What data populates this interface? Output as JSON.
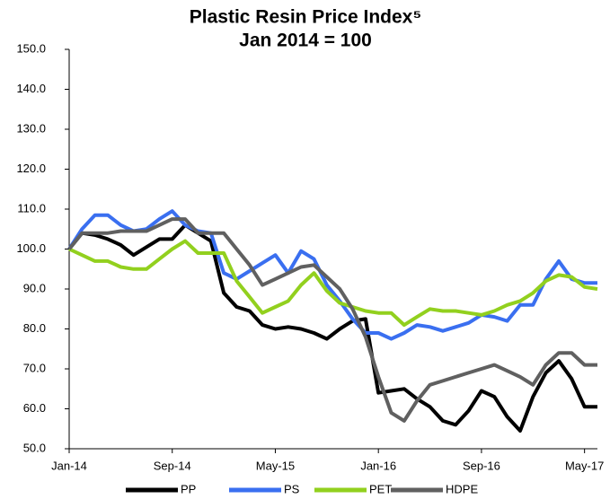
{
  "chart_data": {
    "type": "line",
    "title": "Plastic Resin Price Index⁵",
    "subtitle": "Jan 2014 = 100",
    "categories": [
      "Jan-14",
      null,
      null,
      null,
      null,
      null,
      null,
      null,
      "Sep-14",
      null,
      null,
      null,
      null,
      null,
      null,
      null,
      "May-15",
      null,
      null,
      null,
      null,
      null,
      null,
      null,
      "Jan-16",
      null,
      null,
      null,
      null,
      null,
      null,
      null,
      "Sep-16",
      null,
      null,
      null,
      null,
      null,
      null,
      null,
      "May-17",
      null
    ],
    "series": [
      {
        "name": "PP",
        "color": "#000000",
        "values": [
          100,
          104,
          103.5,
          102.5,
          101,
          98.5,
          100.5,
          102.5,
          102.5,
          106,
          104,
          102,
          89,
          85.5,
          84.5,
          81,
          80,
          80.5,
          80,
          79,
          77.5,
          80,
          82,
          82.5,
          64,
          64.5,
          65,
          62.5,
          60.5,
          57,
          56,
          59.5,
          64.5,
          63,
          58,
          54.5,
          63,
          69,
          72,
          67.5,
          60.5,
          60.5
        ]
      },
      {
        "name": "PS",
        "color": "#3a6ff0",
        "values": [
          100,
          105,
          108.5,
          108.5,
          106,
          104.5,
          105,
          107.5,
          109.5,
          106,
          104.5,
          104,
          94,
          92.5,
          94.5,
          96.5,
          98.5,
          94,
          99.5,
          97.5,
          91,
          87,
          82.5,
          79,
          79,
          77.5,
          79,
          81,
          80.5,
          79.5,
          80.5,
          81.5,
          83.5,
          83,
          82,
          86,
          86,
          92.5,
          97,
          92.5,
          91.5,
          91.5
        ]
      },
      {
        "name": "PET",
        "color": "#92d01e",
        "values": [
          100,
          98.5,
          97,
          97,
          95.5,
          95,
          95,
          97.5,
          100,
          102,
          99,
          99,
          99,
          92,
          88,
          84,
          85.5,
          87,
          91,
          94,
          89.5,
          86.5,
          85.5,
          84.5,
          84,
          84,
          81,
          83,
          85,
          84.5,
          84.5,
          84,
          83.5,
          84.5,
          86,
          87,
          89,
          92,
          93.5,
          93,
          90.5,
          90
        ]
      },
      {
        "name": "HDPE",
        "color": "#606060",
        "values": [
          100,
          104,
          104,
          104,
          104.5,
          104.5,
          104.5,
          106,
          107.5,
          107.5,
          104,
          104,
          104,
          100,
          96,
          91,
          92.5,
          94,
          95.5,
          96,
          93,
          90,
          85,
          78,
          68,
          59,
          57,
          62,
          66,
          67,
          68,
          69,
          70,
          71,
          69.5,
          68,
          66,
          71,
          74,
          74,
          71,
          71
        ]
      }
    ],
    "ylim": [
      50,
      150
    ],
    "yticks": [
      {
        "value": 50,
        "label": "50.0"
      },
      {
        "value": 60,
        "label": "60.0"
      },
      {
        "value": 70,
        "label": "70.0"
      },
      {
        "value": 80,
        "label": "80.0"
      },
      {
        "value": 90,
        "label": "90.0"
      },
      {
        "value": 100,
        "label": "100.0"
      },
      {
        "value": 110,
        "label": "110.0"
      },
      {
        "value": 120,
        "label": "120.0"
      },
      {
        "value": 130,
        "label": "130.0"
      },
      {
        "value": 140,
        "label": "140.0"
      },
      {
        "value": 150,
        "label": "150.0"
      }
    ],
    "grid": false,
    "legend": "bottom"
  }
}
